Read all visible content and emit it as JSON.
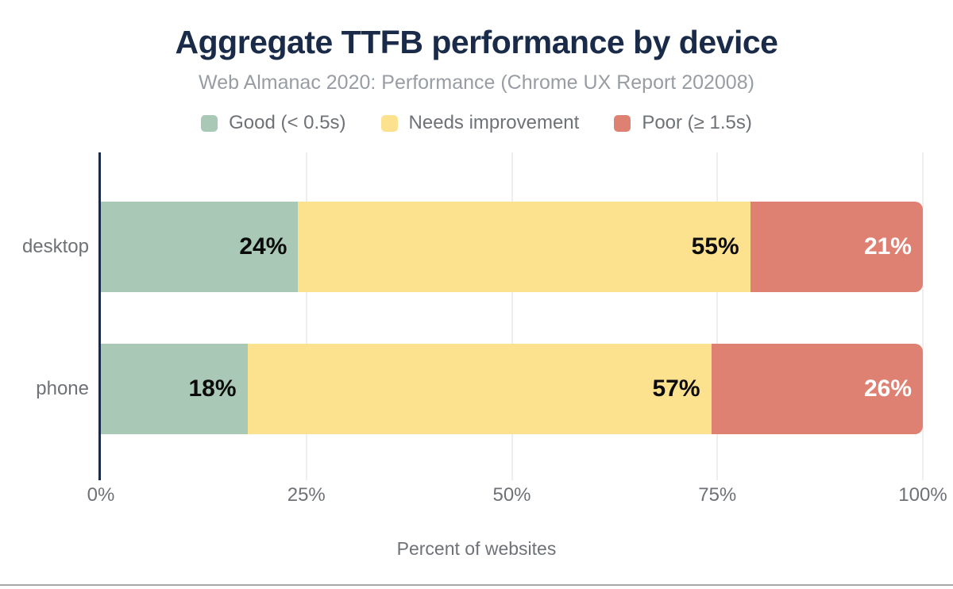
{
  "chart_data": {
    "type": "bar",
    "orientation": "horizontal",
    "stacked": true,
    "title": "Aggregate TTFB performance by device",
    "subtitle": "Web Almanac 2020: Performance (Chrome UX Report 202008)",
    "xlabel": "Percent of websites",
    "categories": [
      "desktop",
      "phone"
    ],
    "series": [
      {
        "name": "Good (< 0.5s)",
        "color": "#a9c9b6",
        "label_color": "#0b0b0b",
        "values": [
          24,
          18
        ]
      },
      {
        "name": "Needs improvement",
        "color": "#fce18f",
        "label_color": "#0b0b0b",
        "values": [
          55,
          57
        ]
      },
      {
        "name": "Poor (≥ 1.5s)",
        "color": "#df8172",
        "label_color": "#ffffff",
        "values": [
          21,
          26
        ]
      }
    ],
    "value_suffix": "%",
    "xlim": [
      0,
      100
    ],
    "x_tick_values": [
      0,
      25,
      50,
      75,
      100
    ],
    "x_tick_labels": [
      "0%",
      "25%",
      "50%",
      "75%",
      "100%"
    ],
    "grid": "vertical-light",
    "legend_position": "top",
    "colors": {
      "title": "#1a2b49",
      "axis_line": "#1a2b49",
      "muted_text": "#6e7277",
      "subtitle_text": "#989da3",
      "gridline": "#eeeeee",
      "bottom_rule": "#a6a6a6"
    }
  }
}
